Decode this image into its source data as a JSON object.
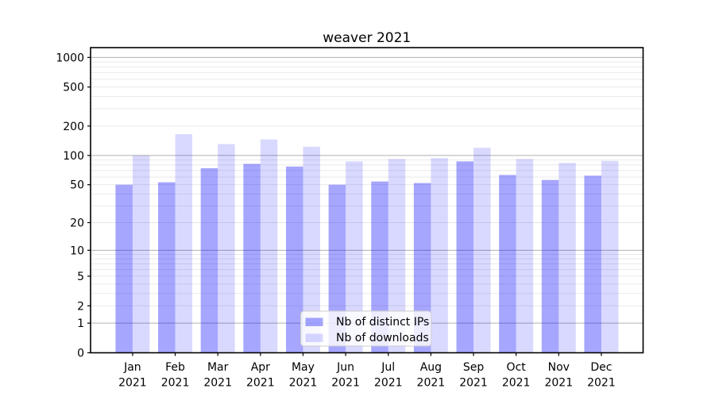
{
  "page": {
    "background": "#ffffff"
  },
  "chart_data": {
    "type": "bar",
    "title": "weaver 2021",
    "x": {
      "months": [
        "Jan",
        "Feb",
        "Mar",
        "Apr",
        "May",
        "Jun",
        "Jul",
        "Aug",
        "Sep",
        "Oct",
        "Nov",
        "Dec"
      ],
      "year": "2021"
    },
    "categories": [
      "Jan 2021",
      "Feb 2021",
      "Mar 2021",
      "Apr 2021",
      "May 2021",
      "Jun 2021",
      "Jul 2021",
      "Aug 2021",
      "Sep 2021",
      "Oct 2021",
      "Nov 2021",
      "Dec 2021"
    ],
    "series": [
      {
        "name": "Nb of distinct IPs",
        "color": "#0000ff",
        "alpha": 0.35,
        "values": [
          50,
          53,
          74,
          82,
          77,
          50,
          54,
          52,
          87,
          63,
          56,
          62
        ]
      },
      {
        "name": "Nb of downloads",
        "color": "#0000ff",
        "alpha": 0.15,
        "values": [
          100,
          165,
          131,
          146,
          123,
          87,
          92,
          94,
          120,
          92,
          84,
          88
        ]
      }
    ],
    "yscale": "log10(1+value)",
    "ylim": [
      0,
      1258
    ],
    "yticks": [
      0,
      1,
      2,
      5,
      10,
      20,
      50,
      100,
      200,
      500,
      1000
    ],
    "grid": {
      "major_at": [
        1,
        10,
        100,
        1000
      ],
      "minor_multipliers": [
        2,
        3,
        4,
        5,
        6,
        7,
        8,
        9
      ],
      "minor_decades": [
        1,
        10,
        100
      ],
      "major_color": "#b0b0b0",
      "minor_color": "#e7e7e7"
    },
    "legend": {
      "entries": [
        "Nb of distinct IPs",
        "Nb of downloads"
      ],
      "location": "lower center",
      "background": "#ffffff",
      "border_color": "#cccccc"
    },
    "axis_color": "#000000",
    "text_color": "#000000"
  }
}
